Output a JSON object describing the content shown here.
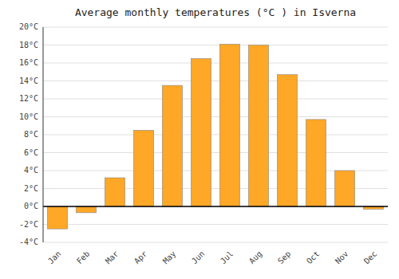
{
  "chart_data": {
    "type": "bar",
    "title": "Average monthly temperatures (°C ) in Isverna",
    "categories": [
      "Jan",
      "Feb",
      "Mar",
      "Apr",
      "May",
      "Jun",
      "Jul",
      "Aug",
      "Sep",
      "Oct",
      "Nov",
      "Dec"
    ],
    "values": [
      -2.5,
      -0.7,
      3.2,
      8.5,
      13.5,
      16.5,
      18.1,
      18.0,
      14.7,
      9.7,
      4.0,
      -0.3
    ],
    "color": "#FFA726",
    "ylim": [
      -4,
      20
    ],
    "yticks": [
      {
        "value": -4,
        "label": "-4°C"
      },
      {
        "value": -2,
        "label": "-2°C"
      },
      {
        "value": 0,
        "label": "0°C"
      },
      {
        "value": 2,
        "label": "2°C"
      },
      {
        "value": 4,
        "label": "4°C"
      },
      {
        "value": 6,
        "label": "6°C"
      },
      {
        "value": 8,
        "label": "8°C"
      },
      {
        "value": 10,
        "label": "10°C"
      },
      {
        "value": 12,
        "label": "12°C"
      },
      {
        "value": 14,
        "label": "14°C"
      },
      {
        "value": 16,
        "label": "16°C"
      },
      {
        "value": 18,
        "label": "18°C"
      },
      {
        "value": 20,
        "label": "20°C"
      }
    ],
    "grid": true
  }
}
